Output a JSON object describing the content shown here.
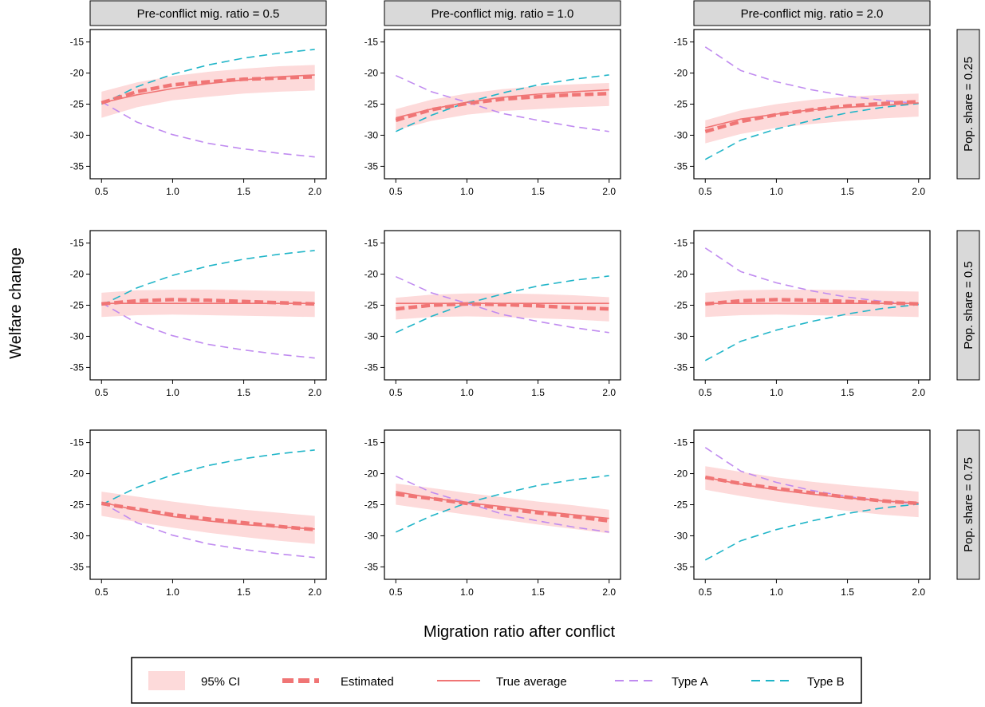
{
  "chart_data": {
    "type": "line",
    "facet_rows": [
      "Pop. share = 0.25",
      "Pop. share = 0.5",
      "Pop. share = 0.75"
    ],
    "facet_cols": [
      "Pre-conflict mig. ratio = 0.5",
      "Pre-conflict mig. ratio = 1.0",
      "Pre-conflict mig. ratio = 2.0"
    ],
    "xlabel": "Migration ratio after conflict",
    "ylabel": "Welfare change",
    "xlim": [
      0.42,
      2.08
    ],
    "ylim": [
      -37,
      -13
    ],
    "xticks": [
      0.5,
      1.0,
      1.5,
      2.0
    ],
    "xtick_labels": [
      "0.5",
      "1.0",
      "1.5",
      "2.0"
    ],
    "yticks": [
      -15,
      -20,
      -25,
      -30,
      -35
    ],
    "ytick_labels": [
      "-15",
      "-20",
      "-25",
      "-30",
      "-35"
    ],
    "x": [
      0.5,
      0.75,
      1.0,
      1.25,
      1.5,
      1.75,
      2.0
    ],
    "legend": {
      "position": "bottom",
      "entries": [
        "95% CI",
        "Estimated",
        "True average",
        "Type A",
        "Type B"
      ]
    },
    "colors": {
      "ci": "#FDDADA",
      "estimated": "#F07575",
      "true": "#F07575",
      "typeA": "#C08BF0",
      "typeB": "#20B5C8"
    },
    "panels": [
      {
        "row": 0,
        "col": 0,
        "type_a": [
          -24.6,
          -27.9,
          -29.9,
          -31.3,
          -32.2,
          -32.9,
          -33.5
        ],
        "type_b": [
          -25.0,
          -22.2,
          -20.2,
          -18.7,
          -17.6,
          -16.8,
          -16.2
        ],
        "true_average": [
          -24.8,
          -23.5,
          -22.5,
          -21.7,
          -21.1,
          -20.6,
          -20.3
        ],
        "estimated": [
          -24.8,
          -23.0,
          -21.9,
          -21.4,
          -21.0,
          -20.8,
          -20.6
        ],
        "ci_lower": [
          -27.2,
          -25.5,
          -24.4,
          -23.8,
          -23.3,
          -23.0,
          -22.8
        ],
        "ci_upper": [
          -23.0,
          -21.5,
          -20.5,
          -19.8,
          -19.3,
          -18.9,
          -18.7
        ]
      },
      {
        "row": 0,
        "col": 1,
        "type_a": [
          -20.4,
          -23.0,
          -24.7,
          -26.5,
          -27.6,
          -28.6,
          -29.4
        ],
        "type_b": [
          -29.4,
          -26.8,
          -24.7,
          -23.2,
          -21.9,
          -21.0,
          -20.3
        ],
        "true_average": [
          -27.2,
          -25.8,
          -24.7,
          -23.9,
          -23.4,
          -23.0,
          -22.7
        ],
        "estimated": [
          -27.6,
          -25.9,
          -24.9,
          -24.2,
          -23.8,
          -23.5,
          -23.3
        ],
        "ci_lower": [
          -29.2,
          -27.7,
          -26.7,
          -26.1,
          -25.8,
          -25.5,
          -25.3
        ],
        "ci_upper": [
          -25.8,
          -24.3,
          -23.3,
          -22.6,
          -22.1,
          -21.8,
          -21.6
        ]
      },
      {
        "row": 0,
        "col": 2,
        "type_a": [
          -15.8,
          -19.6,
          -21.4,
          -22.7,
          -23.7,
          -24.4,
          -24.9
        ],
        "type_b": [
          -33.9,
          -30.8,
          -29.0,
          -27.6,
          -26.4,
          -25.5,
          -24.9
        ],
        "true_average": [
          -28.8,
          -27.4,
          -26.6,
          -25.9,
          -25.5,
          -25.2,
          -24.8
        ],
        "estimated": [
          -29.4,
          -27.8,
          -26.7,
          -25.9,
          -25.3,
          -24.9,
          -24.6
        ],
        "ci_lower": [
          -31.3,
          -29.8,
          -28.8,
          -28.2,
          -27.7,
          -27.3,
          -27.0
        ],
        "ci_upper": [
          -27.6,
          -26.0,
          -25.0,
          -24.3,
          -23.8,
          -23.5,
          -23.3
        ]
      },
      {
        "row": 1,
        "col": 0,
        "type_a": [
          -24.6,
          -27.9,
          -29.9,
          -31.3,
          -32.2,
          -32.9,
          -33.5
        ],
        "type_b": [
          -25.0,
          -22.2,
          -20.2,
          -18.7,
          -17.6,
          -16.8,
          -16.2
        ],
        "true_average": [
          -24.7,
          -24.7,
          -24.7,
          -24.7,
          -24.7,
          -24.7,
          -24.7
        ],
        "estimated": [
          -24.8,
          -24.3,
          -24.1,
          -24.2,
          -24.4,
          -24.6,
          -24.8
        ],
        "ci_lower": [
          -26.9,
          -26.6,
          -26.5,
          -26.6,
          -26.7,
          -26.8,
          -26.9
        ],
        "ci_upper": [
          -23.0,
          -22.6,
          -22.5,
          -22.5,
          -22.6,
          -22.7,
          -22.8
        ]
      },
      {
        "row": 1,
        "col": 1,
        "type_a": [
          -20.4,
          -23.0,
          -24.7,
          -26.5,
          -27.6,
          -28.6,
          -29.4
        ],
        "type_b": [
          -29.4,
          -26.8,
          -24.7,
          -23.2,
          -21.9,
          -21.0,
          -20.3
        ],
        "true_average": [
          -24.7,
          -24.7,
          -24.7,
          -24.7,
          -24.7,
          -24.7,
          -24.7
        ],
        "estimated": [
          -25.6,
          -25.0,
          -24.8,
          -24.9,
          -25.1,
          -25.4,
          -25.6
        ],
        "ci_lower": [
          -27.3,
          -26.9,
          -26.8,
          -26.9,
          -27.1,
          -27.3,
          -27.6
        ],
        "ci_upper": [
          -23.8,
          -23.3,
          -23.1,
          -23.1,
          -23.2,
          -23.4,
          -23.7
        ]
      },
      {
        "row": 1,
        "col": 2,
        "type_a": [
          -15.8,
          -19.6,
          -21.4,
          -22.7,
          -23.7,
          -24.4,
          -24.9
        ],
        "type_b": [
          -33.9,
          -30.8,
          -29.0,
          -27.6,
          -26.4,
          -25.5,
          -24.9
        ],
        "true_average": [
          -24.7,
          -24.7,
          -24.7,
          -24.7,
          -24.7,
          -24.7,
          -24.7
        ],
        "estimated": [
          -24.8,
          -24.3,
          -24.1,
          -24.2,
          -24.4,
          -24.6,
          -24.8
        ],
        "ci_lower": [
          -26.9,
          -26.6,
          -26.5,
          -26.6,
          -26.7,
          -26.8,
          -26.9
        ],
        "ci_upper": [
          -23.0,
          -22.6,
          -22.5,
          -22.5,
          -22.6,
          -22.7,
          -22.8
        ]
      },
      {
        "row": 2,
        "col": 0,
        "type_a": [
          -24.6,
          -27.9,
          -29.9,
          -31.3,
          -32.2,
          -32.9,
          -33.5
        ],
        "type_b": [
          -25.0,
          -22.2,
          -20.2,
          -18.7,
          -17.6,
          -16.8,
          -16.2
        ],
        "true_average": [
          -24.6,
          -25.9,
          -26.9,
          -27.6,
          -28.2,
          -28.6,
          -28.9
        ],
        "estimated": [
          -24.8,
          -25.7,
          -26.6,
          -27.3,
          -27.9,
          -28.5,
          -29.0
        ],
        "ci_lower": [
          -26.8,
          -27.8,
          -28.7,
          -29.5,
          -30.2,
          -30.8,
          -31.3
        ],
        "ci_upper": [
          -22.9,
          -23.7,
          -24.5,
          -25.2,
          -25.8,
          -26.3,
          -26.8
        ]
      },
      {
        "row": 2,
        "col": 1,
        "type_a": [
          -20.4,
          -23.0,
          -24.7,
          -26.5,
          -27.6,
          -28.6,
          -29.4
        ],
        "type_b": [
          -29.4,
          -26.8,
          -24.7,
          -23.2,
          -21.9,
          -21.0,
          -20.3
        ],
        "true_average": [
          -22.9,
          -23.9,
          -24.7,
          -25.3,
          -26.0,
          -26.6,
          -27.2
        ],
        "estimated": [
          -23.3,
          -24.0,
          -24.8,
          -25.6,
          -26.3,
          -26.9,
          -27.6
        ],
        "ci_lower": [
          -25.0,
          -25.8,
          -26.6,
          -27.4,
          -28.2,
          -28.9,
          -29.6
        ],
        "ci_upper": [
          -21.6,
          -22.3,
          -23.1,
          -23.8,
          -24.5,
          -25.1,
          -25.8
        ]
      },
      {
        "row": 2,
        "col": 2,
        "type_a": [
          -15.8,
          -19.6,
          -21.4,
          -22.7,
          -23.7,
          -24.4,
          -24.9
        ],
        "type_b": [
          -33.9,
          -30.8,
          -29.0,
          -27.6,
          -26.4,
          -25.5,
          -24.9
        ],
        "true_average": [
          -20.6,
          -21.7,
          -22.6,
          -23.3,
          -23.9,
          -24.4,
          -24.7
        ],
        "estimated": [
          -20.6,
          -21.6,
          -22.4,
          -23.1,
          -23.8,
          -24.4,
          -24.8
        ],
        "ci_lower": [
          -22.6,
          -23.6,
          -24.5,
          -25.3,
          -26.0,
          -26.6,
          -27.0
        ],
        "ci_upper": [
          -18.8,
          -19.7,
          -20.6,
          -21.3,
          -21.9,
          -22.4,
          -22.9
        ]
      }
    ]
  }
}
